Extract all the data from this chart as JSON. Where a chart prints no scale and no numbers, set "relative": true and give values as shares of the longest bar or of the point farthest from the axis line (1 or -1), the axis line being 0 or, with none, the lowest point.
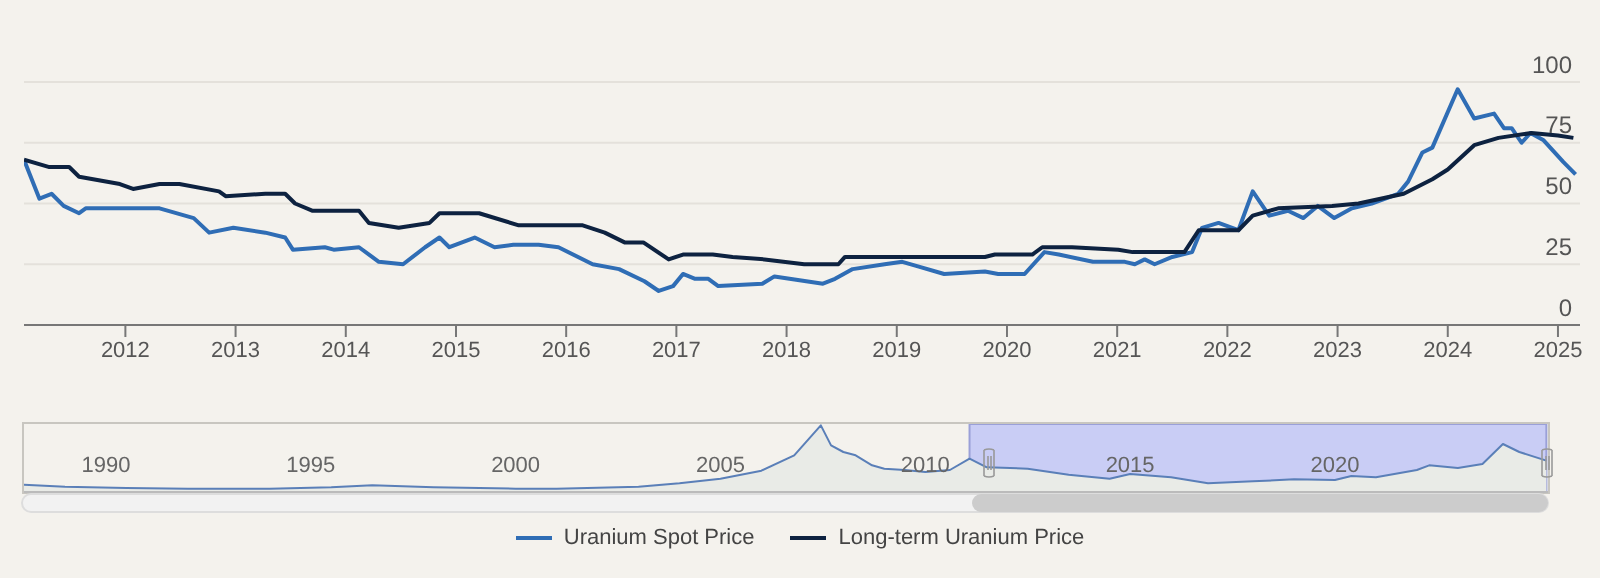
{
  "chart_data": [
    {
      "type": "line",
      "xlim": [
        2011.08,
        2025.2
      ],
      "xticks": [
        2012,
        2013,
        2014,
        2015,
        2016,
        2017,
        2018,
        2019,
        2020,
        2021,
        2022,
        2023,
        2024,
        2025
      ],
      "ylim": [
        0,
        100
      ],
      "yticks": [
        0,
        25,
        50,
        75,
        100
      ],
      "grid": "y",
      "legend": "bottom",
      "marker": "none",
      "line_style": "solid",
      "series": [
        {
          "name": "Uranium Spot Price",
          "color": "#2f6db5",
          "x": [
            2011.08,
            2011.22,
            2011.33,
            2011.44,
            2011.58,
            2011.64,
            2012.07,
            2012.31,
            2012.62,
            2012.76,
            2012.98,
            2013.27,
            2013.45,
            2013.52,
            2013.81,
            2013.89,
            2014.12,
            2014.3,
            2014.52,
            2014.72,
            2014.85,
            2014.94,
            2015.17,
            2015.35,
            2015.52,
            2015.75,
            2015.93,
            2016.24,
            2016.48,
            2016.71,
            2016.84,
            2016.97,
            2017.06,
            2017.17,
            2017.29,
            2017.38,
            2017.78,
            2017.89,
            2018.33,
            2018.44,
            2018.6,
            2018.89,
            2019.05,
            2019.2,
            2019.43,
            2019.8,
            2019.92,
            2020.16,
            2020.34,
            2020.47,
            2020.78,
            2021.07,
            2021.16,
            2021.25,
            2021.34,
            2021.5,
            2021.68,
            2021.77,
            2021.92,
            2022.1,
            2022.23,
            2022.38,
            2022.55,
            2022.69,
            2022.82,
            2022.97,
            2023.13,
            2023.31,
            2023.55,
            2023.64,
            2023.77,
            2023.86,
            2024.09,
            2024.24,
            2024.42,
            2024.51,
            2024.58,
            2024.67,
            2024.75,
            2024.87,
            2025.05,
            2025.16
          ],
          "values": [
            68,
            52,
            54,
            49,
            46,
            48,
            48,
            48,
            44,
            38,
            40,
            38,
            36,
            31,
            32,
            31,
            32,
            26,
            25,
            32,
            36,
            32,
            36,
            32,
            33,
            33,
            32,
            25,
            23,
            18,
            14,
            16,
            21,
            19,
            19,
            16,
            17,
            20,
            17,
            19,
            23,
            25,
            26,
            24,
            21,
            22,
            21,
            21,
            30,
            29,
            26,
            26,
            25,
            27,
            25,
            28,
            30,
            40,
            42,
            39,
            55,
            45,
            47,
            44,
            49,
            44,
            48,
            50,
            54,
            59,
            71,
            73,
            97,
            85,
            87,
            81,
            81,
            75,
            79,
            76,
            67,
            62
          ]
        },
        {
          "name": "Long-term Uranium Price",
          "color": "#0d2240",
          "x": [
            2011.08,
            2011.31,
            2011.49,
            2011.58,
            2011.95,
            2012.07,
            2012.31,
            2012.49,
            2012.85,
            2012.91,
            2013.27,
            2013.45,
            2013.54,
            2013.7,
            2014.12,
            2014.21,
            2014.48,
            2014.76,
            2014.85,
            2015.21,
            2015.57,
            2016.15,
            2016.35,
            2016.53,
            2016.7,
            2016.93,
            2017.06,
            2017.33,
            2017.51,
            2017.8,
            2018.16,
            2018.47,
            2018.53,
            2018.96,
            2019.43,
            2019.8,
            2019.89,
            2020.23,
            2020.32,
            2020.59,
            2021.01,
            2021.14,
            2021.61,
            2021.74,
            2022.1,
            2022.23,
            2022.46,
            2022.95,
            2023.19,
            2023.6,
            2023.86,
            2024,
            2024.24,
            2024.46,
            2024.76,
            2025,
            2025.14
          ],
          "values": [
            68,
            65,
            65,
            61,
            58,
            56,
            58,
            58,
            55,
            53,
            54,
            54,
            50,
            47,
            47,
            42,
            40,
            42,
            46,
            46,
            41,
            41,
            38,
            34,
            34,
            27,
            29,
            29,
            28,
            27,
            25,
            25,
            28,
            28,
            28,
            28,
            29,
            29,
            32,
            32,
            31,
            30,
            30,
            39,
            39,
            45,
            48,
            49,
            50,
            54,
            60,
            64,
            74,
            77,
            79,
            78,
            77
          ]
        }
      ]
    },
    {
      "type": "area",
      "relative": true,
      "xlim": [
        1988,
        2025.2
      ],
      "xticks": [
        1990,
        1995,
        2000,
        2005,
        2010,
        2015,
        2020
      ],
      "marker": "none",
      "bands": [
        {
          "axis": "x",
          "from": 2011.08,
          "to": 2025.16,
          "color": "#c9cdf5"
        }
      ],
      "series": [
        {
          "color": "#5a7fb8",
          "x": [
            1988,
            1989,
            1990.5,
            1992,
            1994,
            1995.5,
            1996.5,
            1998,
            2000,
            2001,
            2003,
            2004,
            2005,
            2006,
            2006.8,
            2007.45,
            2007.7,
            2008,
            2008.3,
            2008.7,
            2009,
            2009.5,
            2010,
            2010.6,
            2011.08,
            2011.5,
            2012.5,
            2013.5,
            2014.5,
            2015,
            2016,
            2016.9,
            2018,
            2019,
            2020,
            2020.4,
            2021,
            2022,
            2022.3,
            2023,
            2023.6,
            2024.1,
            2024.5,
            2025.16
          ],
          "values": [
            0.11,
            0.08,
            0.06,
            0.05,
            0.05,
            0.07,
            0.1,
            0.07,
            0.05,
            0.05,
            0.08,
            0.13,
            0.2,
            0.32,
            0.55,
            1,
            0.7,
            0.6,
            0.55,
            0.4,
            0.35,
            0.33,
            0.3,
            0.33,
            0.5,
            0.37,
            0.35,
            0.26,
            0.2,
            0.27,
            0.22,
            0.13,
            0.16,
            0.19,
            0.18,
            0.24,
            0.22,
            0.33,
            0.4,
            0.36,
            0.42,
            0.72,
            0.6,
            0.47
          ]
        }
      ]
    }
  ]
}
